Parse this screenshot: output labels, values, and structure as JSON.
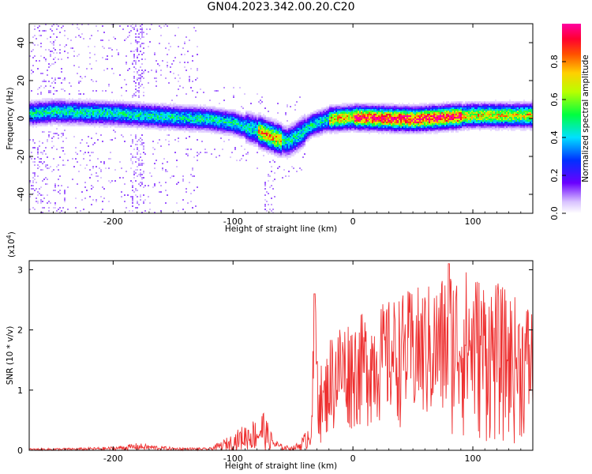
{
  "title": "GN04.2023.342.00.20.C20",
  "chart_data": [
    {
      "type": "heatmap",
      "xlabel": "Height of straight line (km)",
      "ylabel": "Frequency (Hz)",
      "xlim": [
        -270,
        150
      ],
      "ylim": [
        -50,
        50
      ],
      "xticks": [
        -200,
        -100,
        0,
        100
      ],
      "yticks": [
        -40,
        -20,
        0,
        20,
        40
      ],
      "colorbar": {
        "label": "Normalized spectral amplitude",
        "range": [
          0.0,
          1.0
        ],
        "ticks": [
          "0.0",
          "0.2",
          "0.4",
          "0.6",
          "0.8"
        ],
        "colormap": "rainbow"
      },
      "ridge_center_hz": {
        "x": [
          -270,
          -250,
          -200,
          -150,
          -120,
          -100,
          -80,
          -65,
          -55,
          -45,
          -35,
          -20,
          0,
          50,
          100,
          150
        ],
        "y": [
          3,
          4,
          3,
          1,
          0,
          -2,
          -6,
          -10,
          -12,
          -8,
          -3,
          0,
          1,
          0,
          2,
          2
        ]
      }
    },
    {
      "type": "line",
      "xlabel": "Height of straight line (km)",
      "ylabel": "SNR (10 * v/v)",
      "y_scale_note": "(x10",
      "y_scale_exp": "4",
      "y_scale_close": ")",
      "xlim": [
        -270,
        150
      ],
      "ylim": [
        0,
        3.15
      ],
      "xticks": [
        -200,
        -100,
        0,
        100
      ],
      "yticks": [
        0,
        1,
        2,
        3
      ],
      "color": "#ee3030",
      "envelope": {
        "x": [
          -270,
          -230,
          -200,
          -180,
          -150,
          -120,
          -110,
          -100,
          -90,
          -80,
          -75,
          -70,
          -65,
          -60,
          -55,
          -50,
          -45,
          -40,
          -35,
          -32,
          -28,
          -25,
          -20,
          -10,
          0,
          10,
          30,
          50,
          70,
          80,
          100,
          120,
          140,
          150
        ],
        "y_min": [
          0,
          0,
          0,
          0,
          0,
          0,
          0,
          0,
          0,
          0,
          0,
          0,
          0,
          0,
          0,
          0,
          0,
          0,
          0.05,
          0.2,
          0.1,
          0.15,
          0.2,
          0.25,
          0.3,
          0.35,
          0.4,
          0.35,
          0.3,
          0.2,
          0.1,
          0.05,
          0.1,
          0.2
        ],
        "y_max": [
          0.03,
          0.04,
          0.06,
          0.12,
          0.05,
          0.04,
          0.15,
          0.28,
          0.45,
          0.55,
          0.72,
          0.38,
          0.2,
          0.1,
          0.08,
          0.07,
          0.15,
          0.3,
          0.6,
          2.6,
          1.7,
          1.2,
          1.9,
          2.2,
          2.2,
          2.3,
          2.5,
          2.7,
          2.8,
          3.1,
          3.0,
          2.8,
          2.5,
          2.5
        ]
      }
    }
  ]
}
